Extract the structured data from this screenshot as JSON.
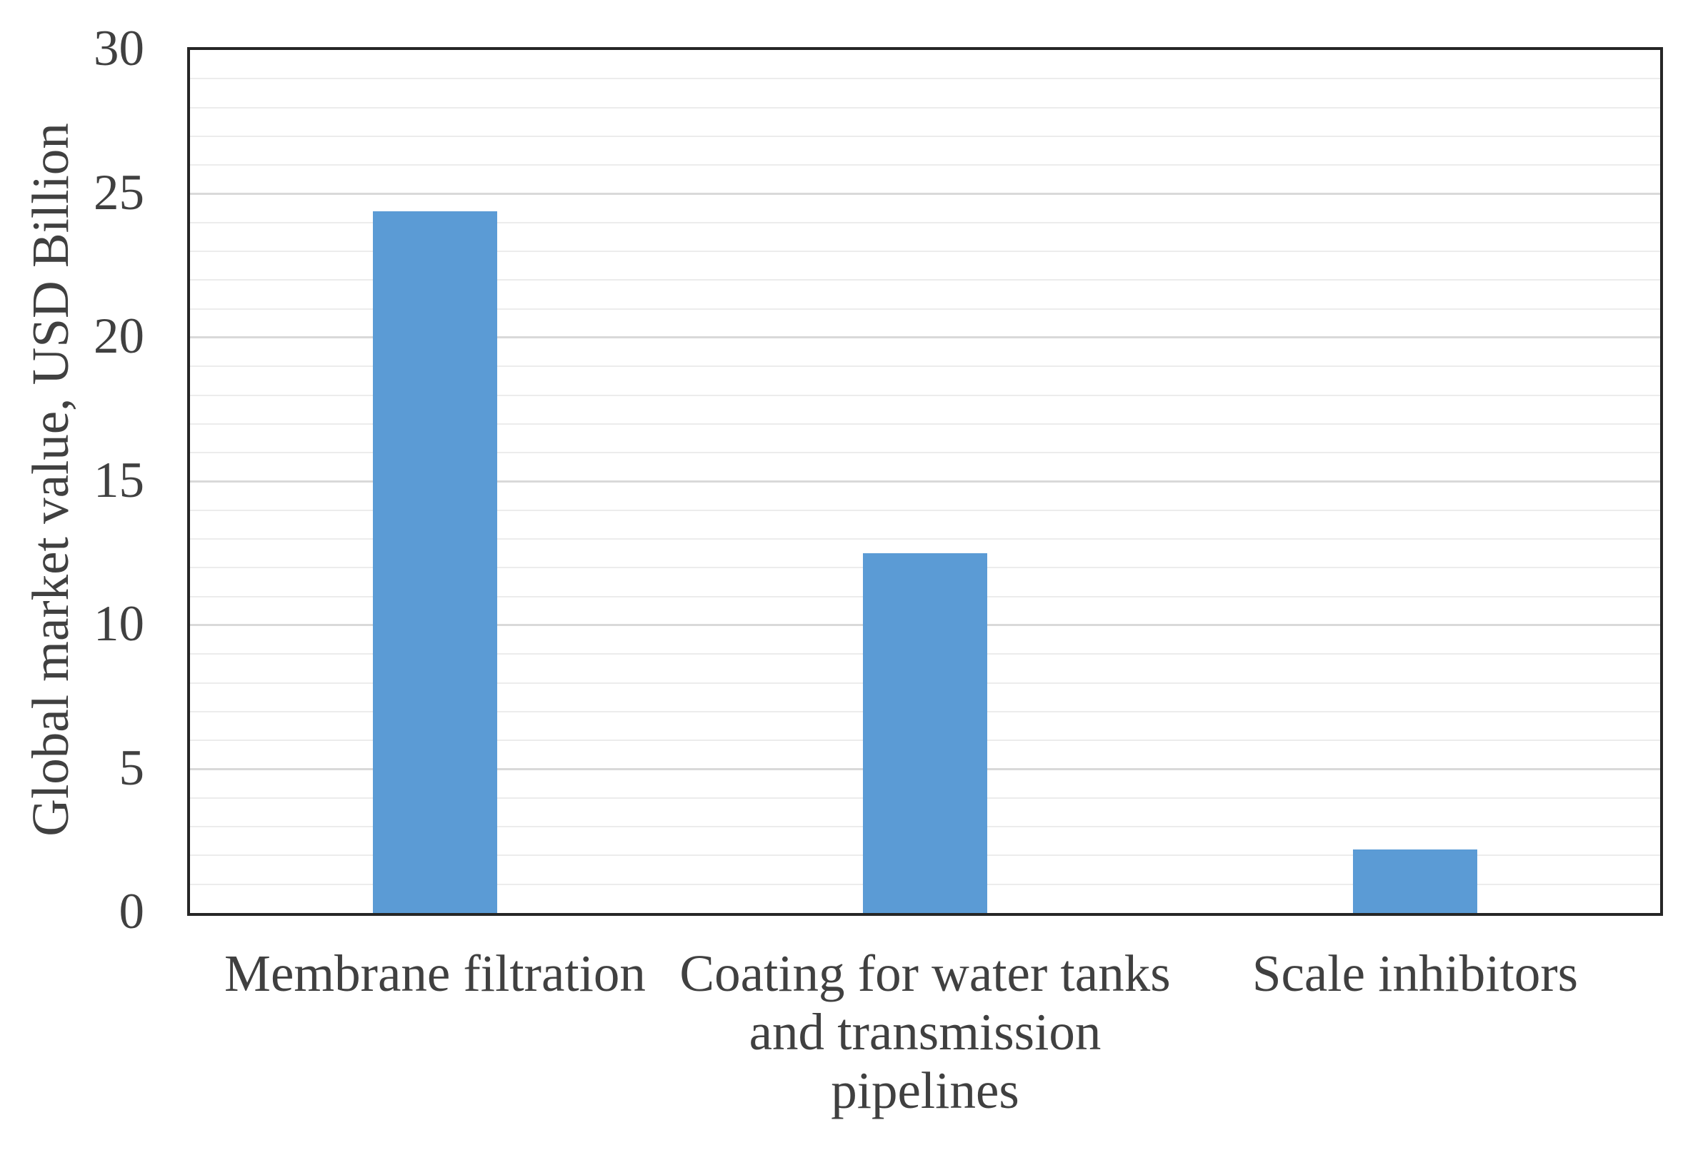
{
  "chart_data": {
    "type": "bar",
    "categories": [
      "Membrane filtration",
      "Coating for water tanks and transmission pipelines",
      "Scale inhibitors"
    ],
    "category_lines": [
      [
        "Membrane filtration"
      ],
      [
        "Coating for water tanks",
        "and transmission",
        "pipelines"
      ],
      [
        "Scale inhibitors"
      ]
    ],
    "values": [
      24.4,
      12.5,
      2.2
    ],
    "xlabel": "",
    "ylabel": "Global market value, USD Billion",
    "ylim": [
      0,
      30
    ],
    "y_axis": {
      "min": 0,
      "max": 30,
      "major_step": 5,
      "minor_step": 1,
      "tick_labels": [
        "0",
        "5",
        "10",
        "15",
        "20",
        "25",
        "30"
      ]
    },
    "grid": "horizontal, minor every 1 unit, major every 5 units",
    "legend_position": "none",
    "bar_color": "#5B9BD5"
  },
  "style": {
    "bar_color": "#5B9BD5",
    "minor_gridline_color": "#ECECEC",
    "major_gridline_color": "#D9D9D9",
    "plot_border_color": "#262626",
    "text_color": "#404040",
    "background_color": "#FFFFFF"
  }
}
